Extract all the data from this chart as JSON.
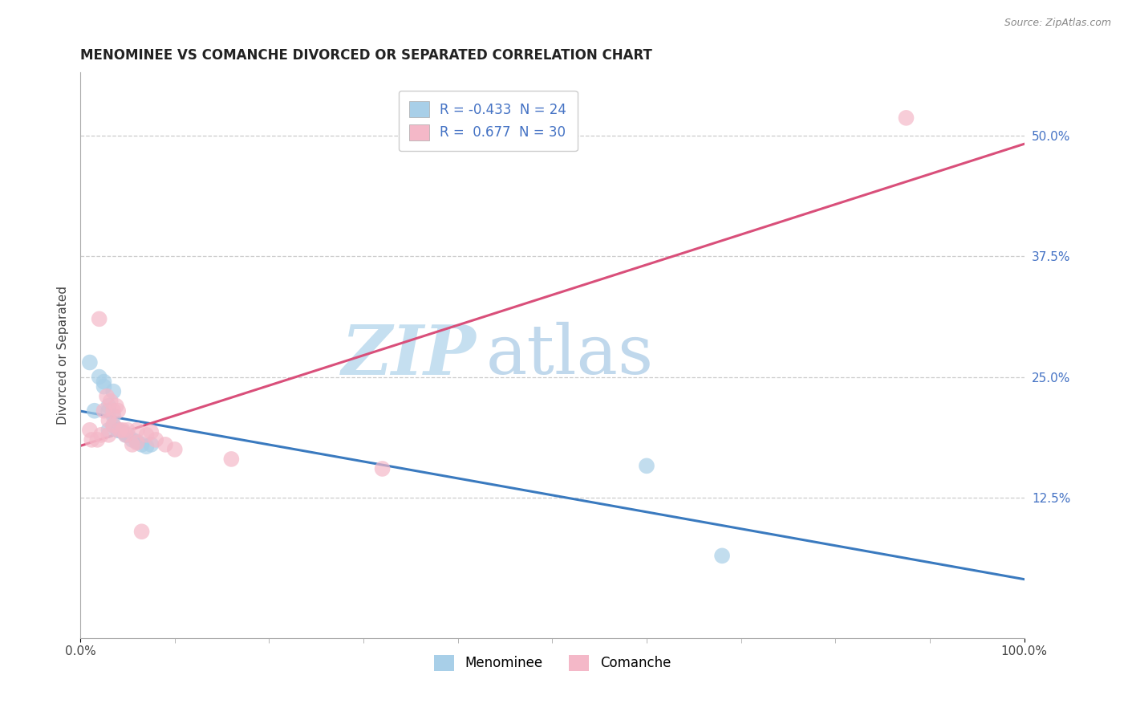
{
  "title": "MENOMINEE VS COMANCHE DIVORCED OR SEPARATED CORRELATION CHART",
  "source": "Source: ZipAtlas.com",
  "ylabel": "Divorced or Separated",
  "ylabel_right_ticks": [
    "50.0%",
    "37.5%",
    "25.0%",
    "12.5%"
  ],
  "ylabel_right_vals": [
    0.5,
    0.375,
    0.25,
    0.125
  ],
  "menominee_R": -0.433,
  "menominee_N": 24,
  "comanche_R": 0.677,
  "comanche_N": 30,
  "menominee_color": "#a8cfe8",
  "comanche_color": "#f4b8c8",
  "menominee_line_color": "#3a7abf",
  "comanche_line_color": "#d94f7a",
  "watermark_zip": "ZIP",
  "watermark_atlas": "atlas",
  "watermark_color_zip": "#c5dff0",
  "watermark_color_atlas": "#c0d8ec",
  "background_color": "#ffffff",
  "xlim": [
    0.0,
    1.0
  ],
  "ylim": [
    -0.02,
    0.565
  ],
  "menominee_x": [
    0.01,
    0.015,
    0.02,
    0.025,
    0.025,
    0.03,
    0.03,
    0.03,
    0.035,
    0.035,
    0.035,
    0.04,
    0.04,
    0.04,
    0.045,
    0.048,
    0.05,
    0.055,
    0.06,
    0.065,
    0.07,
    0.075,
    0.6,
    0.68
  ],
  "menominee_y": [
    0.265,
    0.215,
    0.25,
    0.245,
    0.24,
    0.215,
    0.22,
    0.195,
    0.235,
    0.21,
    0.2,
    0.195,
    0.195,
    0.195,
    0.193,
    0.19,
    0.19,
    0.185,
    0.183,
    0.18,
    0.178,
    0.18,
    0.158,
    0.065
  ],
  "comanche_x": [
    0.01,
    0.012,
    0.018,
    0.02,
    0.022,
    0.025,
    0.028,
    0.03,
    0.03,
    0.032,
    0.035,
    0.035,
    0.038,
    0.04,
    0.042,
    0.045,
    0.048,
    0.05,
    0.055,
    0.06,
    0.06,
    0.065,
    0.07,
    0.075,
    0.08,
    0.09,
    0.1,
    0.16,
    0.32,
    0.875
  ],
  "comanche_y": [
    0.195,
    0.185,
    0.185,
    0.31,
    0.19,
    0.215,
    0.23,
    0.205,
    0.19,
    0.225,
    0.2,
    0.215,
    0.22,
    0.215,
    0.195,
    0.195,
    0.19,
    0.195,
    0.18,
    0.195,
    0.182,
    0.09,
    0.19,
    0.193,
    0.185,
    0.18,
    0.175,
    0.165,
    0.155,
    0.518
  ]
}
